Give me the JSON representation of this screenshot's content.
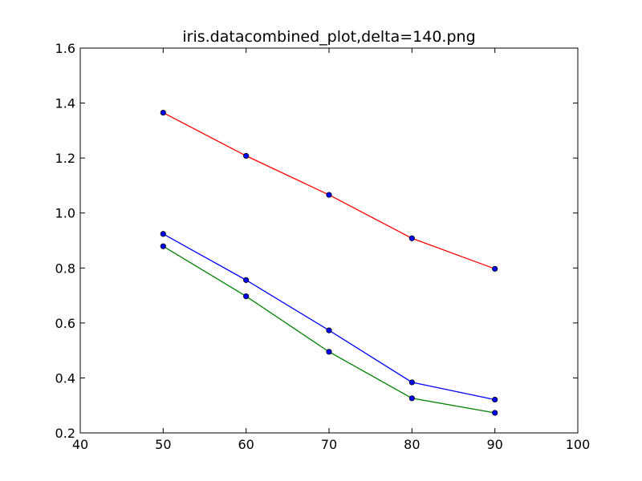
{
  "chart_data": {
    "type": "line",
    "title": "iris.datacombined_plot,delta=140.png",
    "xlabel": "",
    "ylabel": "",
    "xlim": [
      40,
      100
    ],
    "ylim": [
      0.2,
      1.6
    ],
    "x_ticks": [
      40,
      50,
      60,
      70,
      80,
      90,
      100
    ],
    "y_ticks": [
      0.2,
      0.4,
      0.6,
      0.8,
      1.0,
      1.2,
      1.4,
      1.6
    ],
    "x_tick_labels": [
      "40",
      "50",
      "60",
      "70",
      "80",
      "90",
      "100"
    ],
    "y_tick_labels": [
      "0.2",
      "0.4",
      "0.6",
      "0.8",
      "1.0",
      "1.2",
      "1.4",
      "1.6"
    ],
    "grid": false,
    "legend": "none",
    "marker_color": "#0000ff",
    "x": [
      50,
      60,
      70,
      80,
      90
    ],
    "series": [
      {
        "color": "#ff0000",
        "values": [
          1.365,
          1.208,
          1.066,
          0.908,
          0.797
        ]
      },
      {
        "color": "#0000ff",
        "values": [
          0.924,
          0.756,
          0.573,
          0.384,
          0.321
        ]
      },
      {
        "color": "#008000",
        "values": [
          0.879,
          0.697,
          0.495,
          0.326,
          0.273
        ]
      }
    ]
  }
}
